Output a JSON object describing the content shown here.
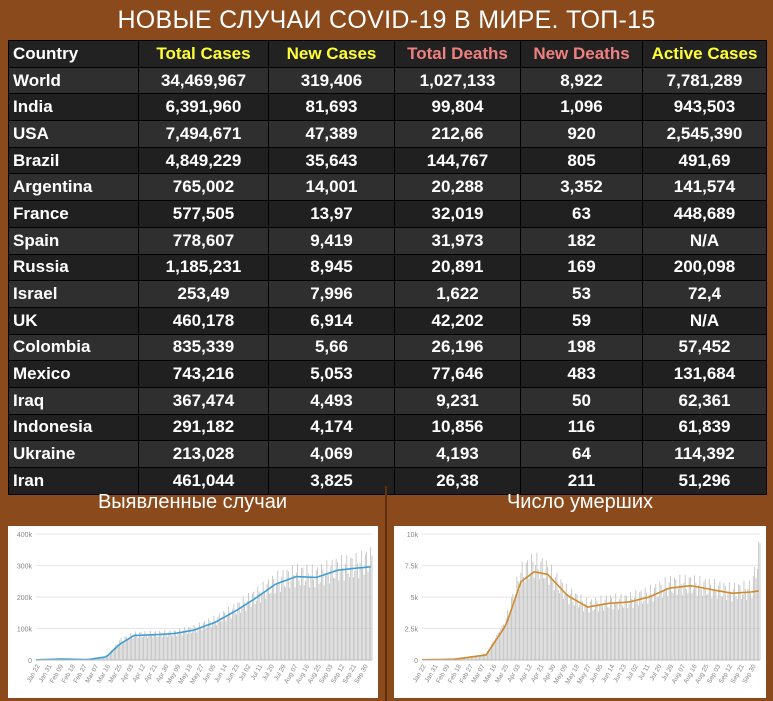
{
  "title": "НОВЫЕ СЛУЧАИ COVID-19 В МИРЕ. ТОП-15",
  "table": {
    "headers": [
      {
        "label": "Country",
        "color": "#ffffff"
      },
      {
        "label": "Total Cases",
        "color": "#ffff33"
      },
      {
        "label": "New Cases",
        "color": "#ffff33"
      },
      {
        "label": "Total Deaths",
        "color": "#f08080"
      },
      {
        "label": "New Deaths",
        "color": "#f08080"
      },
      {
        "label": "Active Cases",
        "color": "#ffff33"
      }
    ],
    "rows": [
      [
        "World",
        "34,469,967",
        "319,406",
        "1,027,133",
        "8,922",
        "7,781,289"
      ],
      [
        "India",
        "6,391,960",
        "81,693",
        "99,804",
        "1,096",
        "943,503"
      ],
      [
        "USA",
        "7,494,671",
        "47,389",
        "212,66",
        "920",
        "2,545,390"
      ],
      [
        "Brazil",
        "4,849,229",
        "35,643",
        "144,767",
        "805",
        "491,69"
      ],
      [
        "Argentina",
        "765,002",
        "14,001",
        "20,288",
        "3,352",
        "141,574"
      ],
      [
        "France",
        "577,505",
        "13,97",
        "32,019",
        "63",
        "448,689"
      ],
      [
        "Spain",
        "778,607",
        "9,419",
        "31,973",
        "182",
        "N/A"
      ],
      [
        "Russia",
        "1,185,231",
        "8,945",
        "20,891",
        "169",
        "200,098"
      ],
      [
        "Israel",
        "253,49",
        "7,996",
        "1,622",
        "53",
        "72,4"
      ],
      [
        "UK",
        "460,178",
        "6,914",
        "42,202",
        "59",
        "N/A"
      ],
      [
        "Colombia",
        "835,339",
        "5,66",
        "26,196",
        "198",
        "57,452"
      ],
      [
        "Mexico",
        "743,216",
        "5,053",
        "77,646",
        "483",
        "131,684"
      ],
      [
        "Iraq",
        "367,474",
        "4,493",
        "9,231",
        "50",
        "62,361"
      ],
      [
        "Indonesia",
        "291,182",
        "4,174",
        "10,856",
        "116",
        "61,839"
      ],
      [
        "Ukraine",
        "213,028",
        "4,069",
        "4,193",
        "64",
        "114,392"
      ],
      [
        "Iran",
        "461,044",
        "3,825",
        "26,38",
        "211",
        "51,296"
      ]
    ]
  },
  "colors": {
    "background": "#8a4a1c",
    "table_bg": "#222222",
    "bar": "#bdbdbd",
    "cases_line": "#3d9ed6",
    "deaths_line": "#d08a2a"
  },
  "chart_data": [
    {
      "type": "bar",
      "title": "Выявленные случаи",
      "xlabel": "",
      "ylabel": "",
      "ylim": [
        0,
        400000
      ],
      "yticks": [
        0,
        100000,
        200000,
        300000,
        400000
      ],
      "ytick_labels": [
        "0",
        "100k",
        "200k",
        "300k",
        "400k"
      ],
      "x_start": "2020-01-22",
      "x_end": "2020-10-01",
      "xtick_labels": [
        "Jan 22",
        "Jan 31",
        "Feb 09",
        "Feb 18",
        "Feb 27",
        "Mar 07",
        "Mar 16",
        "Mar 25",
        "Apr 03",
        "Apr 12",
        "Apr 21",
        "Apr 30",
        "May 09",
        "May 18",
        "May 27",
        "Jun 05",
        "Jun 14",
        "Jun 23",
        "Jul 02",
        "Jul 11",
        "Jul 20",
        "Jul 29",
        "Aug 07",
        "Aug 16",
        "Aug 25",
        "Sep 03",
        "Sep 12",
        "Sep 21",
        "Sep 30"
      ],
      "series": [
        {
          "kind": "bar",
          "x": [
            "2020-01-22",
            "2020-02-10",
            "2020-03-01",
            "2020-03-15",
            "2020-03-25",
            "2020-04-05",
            "2020-04-20",
            "2020-05-05",
            "2020-05-20",
            "2020-06-05",
            "2020-06-20",
            "2020-07-05",
            "2020-07-20",
            "2020-08-05",
            "2020-08-20",
            "2020-09-05",
            "2020-09-20",
            "2020-10-01"
          ],
          "values": [
            500,
            3000,
            1500,
            12000,
            60000,
            80000,
            82000,
            85000,
            98000,
            125000,
            160000,
            200000,
            245000,
            270000,
            265000,
            290000,
            300000,
            319000
          ]
        },
        {
          "kind": "line",
          "x": [
            "2020-01-22",
            "2020-02-10",
            "2020-03-01",
            "2020-03-15",
            "2020-03-25",
            "2020-04-05",
            "2020-04-20",
            "2020-05-05",
            "2020-05-20",
            "2020-06-05",
            "2020-06-20",
            "2020-07-05",
            "2020-07-20",
            "2020-08-05",
            "2020-08-20",
            "2020-09-05",
            "2020-09-20",
            "2020-10-01"
          ],
          "values": [
            500,
            3000,
            1500,
            10000,
            50000,
            78000,
            80000,
            84000,
            95000,
            120000,
            155000,
            195000,
            240000,
            265000,
            262000,
            285000,
            292000,
            296000
          ]
        }
      ]
    },
    {
      "type": "bar",
      "title": "Число умерших",
      "xlabel": "",
      "ylabel": "",
      "ylim": [
        0,
        10000
      ],
      "yticks": [
        0,
        2500,
        5000,
        7500,
        10000
      ],
      "ytick_labels": [
        "0",
        "2.5k",
        "5k",
        "7.5k",
        "10k"
      ],
      "x_start": "2020-01-22",
      "x_end": "2020-10-01",
      "xtick_labels": [
        "Jan 22",
        "Jan 31",
        "Feb 09",
        "Feb 18",
        "Feb 27",
        "Mar 07",
        "Mar 16",
        "Mar 25",
        "Apr 03",
        "Apr 12",
        "Apr 21",
        "Apr 30",
        "May 09",
        "May 18",
        "May 27",
        "Jun 05",
        "Jun 14",
        "Jun 23",
        "Jul 02",
        "Jul 11",
        "Jul 20",
        "Jul 29",
        "Aug 07",
        "Aug 16",
        "Aug 25",
        "Sep 03",
        "Sep 12",
        "Sep 21",
        "Sep 30"
      ],
      "series": [
        {
          "kind": "bar",
          "x": [
            "2020-01-22",
            "2020-02-15",
            "2020-03-10",
            "2020-03-25",
            "2020-04-05",
            "2020-04-15",
            "2020-04-25",
            "2020-05-10",
            "2020-05-25",
            "2020-06-10",
            "2020-06-25",
            "2020-07-10",
            "2020-07-25",
            "2020-08-10",
            "2020-08-25",
            "2020-09-10",
            "2020-09-25",
            "2020-10-01"
          ],
          "values": [
            20,
            80,
            500,
            3200,
            6800,
            7600,
            7000,
            5200,
            4300,
            4600,
            4700,
            5200,
            5900,
            6000,
            5700,
            5400,
            5600,
            8900
          ]
        },
        {
          "kind": "line",
          "x": [
            "2020-01-22",
            "2020-02-15",
            "2020-03-10",
            "2020-03-25",
            "2020-04-05",
            "2020-04-15",
            "2020-04-25",
            "2020-05-10",
            "2020-05-25",
            "2020-06-10",
            "2020-06-25",
            "2020-07-10",
            "2020-07-25",
            "2020-08-10",
            "2020-08-25",
            "2020-09-10",
            "2020-09-25",
            "2020-10-01"
          ],
          "values": [
            20,
            60,
            400,
            2800,
            6200,
            7000,
            6800,
            5100,
            4200,
            4500,
            4600,
            5000,
            5700,
            5900,
            5600,
            5300,
            5400,
            5500
          ]
        }
      ]
    }
  ]
}
